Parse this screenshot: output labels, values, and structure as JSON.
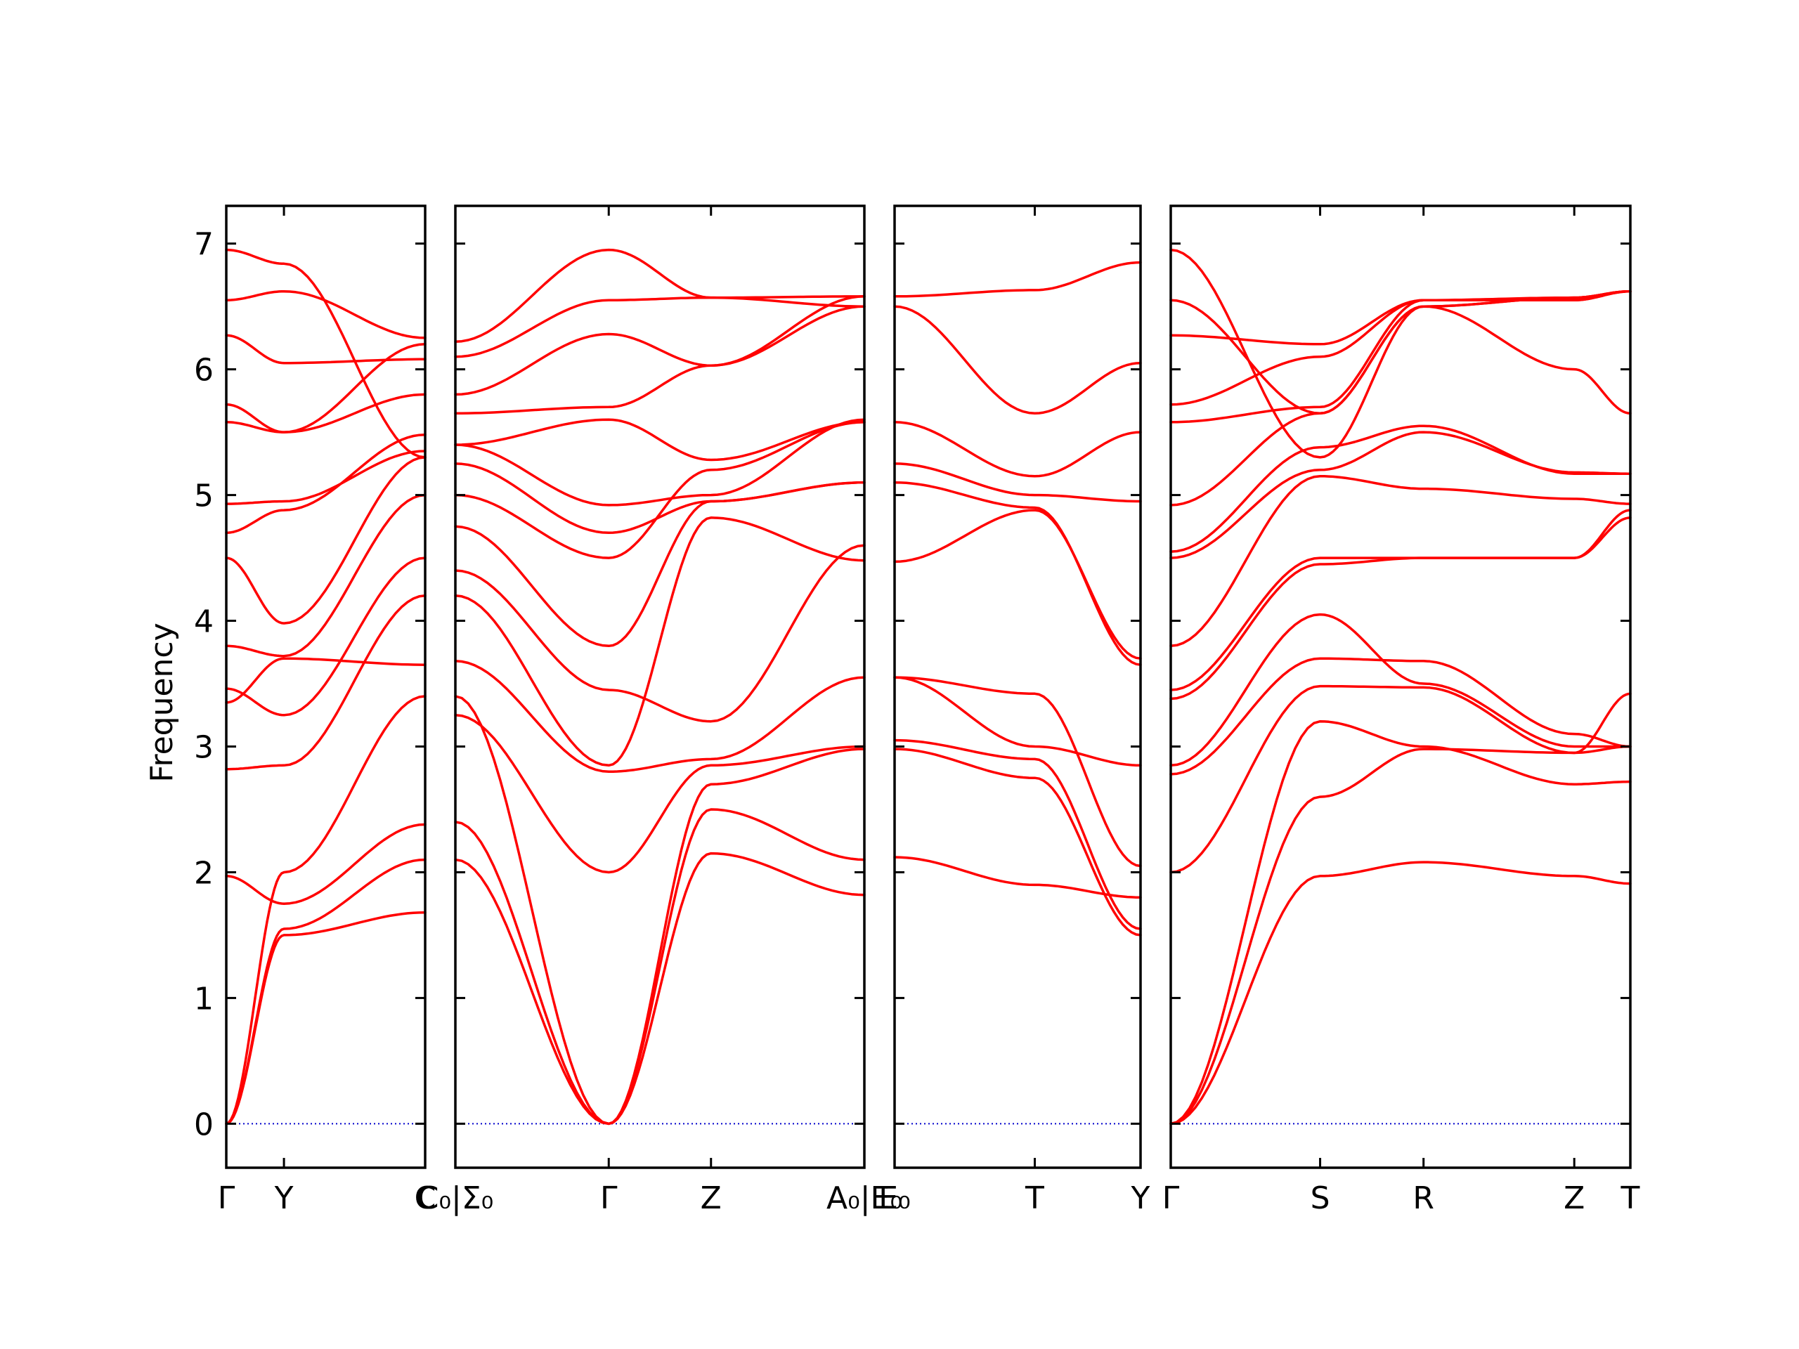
{
  "chart_data": {
    "type": "line",
    "ylabel": "Frequency",
    "ylim": [
      -0.35,
      7.3
    ],
    "yticks": [
      0,
      1,
      2,
      3,
      4,
      5,
      6,
      7
    ],
    "grid": false,
    "colors": {
      "bands": "#ff0000",
      "zero_line": "#0000cc",
      "frame": "#000000"
    },
    "panels": [
      {
        "id": "p1",
        "xlim": [
          0,
          1
        ],
        "xticks": [
          {
            "x": 0.0,
            "label": "Γ"
          },
          {
            "x": 0.29,
            "label": "Y"
          },
          {
            "x": 1.0,
            "label": "C"
          }
        ],
        "segments": [
          [
            0,
            0.29
          ],
          [
            0.29,
            1
          ]
        ],
        "bands": [
          [
            0,
            1.5,
            1.68
          ],
          [
            0,
            1.55,
            2.1
          ],
          [
            0,
            2.0,
            3.4
          ],
          [
            1.97,
            1.75,
            2.38
          ],
          [
            2.82,
            2.85,
            4.2
          ],
          [
            3.46,
            3.25,
            4.5
          ],
          [
            3.35,
            3.7,
            3.65
          ],
          [
            3.8,
            3.72,
            5.0
          ],
          [
            4.5,
            3.98,
            5.3
          ],
          [
            4.7,
            4.88,
            5.48
          ],
          [
            4.93,
            4.95,
            5.35
          ],
          [
            5.58,
            5.5,
            5.8
          ],
          [
            5.72,
            5.5,
            6.2
          ],
          [
            6.27,
            6.05,
            6.08
          ],
          [
            6.55,
            6.62,
            6.25
          ],
          [
            6.95,
            6.84,
            5.3
          ]
        ]
      },
      {
        "id": "p2",
        "xlim": [
          0,
          1
        ],
        "xticks": [
          {
            "x": 0.0,
            "label": "C₀|Σ₀"
          },
          {
            "x": 0.375,
            "label": "Γ"
          },
          {
            "x": 0.625,
            "label": "Z"
          },
          {
            "x": 1.0,
            "label": "A₀|E₀"
          }
        ],
        "segments": [
          [
            0,
            0.375
          ],
          [
            0.375,
            0.625
          ],
          [
            0.625,
            1
          ]
        ],
        "bands": [
          [
            2.1,
            0,
            2.5,
            2.1
          ],
          [
            2.4,
            0,
            2.15,
            1.82
          ],
          [
            3.4,
            0,
            2.7,
            2.98
          ],
          [
            3.25,
            2.0,
            2.85,
            3.0
          ],
          [
            3.68,
            2.8,
            2.9,
            3.55
          ],
          [
            4.2,
            2.85,
            4.82,
            4.48
          ],
          [
            4.4,
            3.45,
            3.2,
            4.6
          ],
          [
            4.75,
            3.8,
            4.95,
            5.1
          ],
          [
            5.0,
            4.5,
            5.2,
            5.58
          ],
          [
            5.25,
            4.7,
            4.95,
            5.1
          ],
          [
            5.4,
            4.92,
            5.0,
            5.6
          ],
          [
            5.4,
            5.6,
            5.28,
            5.58
          ],
          [
            5.65,
            5.7,
            6.03,
            6.58
          ],
          [
            5.8,
            6.28,
            6.03,
            6.5
          ],
          [
            6.1,
            6.55,
            6.57,
            6.5
          ],
          [
            6.22,
            6.95,
            6.57,
            6.58
          ]
        ]
      },
      {
        "id": "p3",
        "xlim": [
          0,
          1
        ],
        "xticks": [
          {
            "x": 0.0,
            "label": "E₀"
          },
          {
            "x": 0.57,
            "label": "T"
          },
          {
            "x": 1.0,
            "label": "Y"
          }
        ],
        "segments": [
          [
            0,
            0.57
          ],
          [
            0.57,
            1
          ]
        ],
        "bands": [
          [
            2.12,
            1.9,
            1.8
          ],
          [
            2.98,
            2.75,
            1.5
          ],
          [
            3.05,
            2.9,
            1.55
          ],
          [
            3.55,
            3.0,
            2.85
          ],
          [
            3.55,
            3.42,
            2.05
          ],
          [
            4.47,
            4.88,
            3.7
          ],
          [
            5.1,
            4.9,
            3.65
          ],
          [
            5.25,
            5.0,
            4.95
          ],
          [
            5.58,
            5.15,
            5.5
          ],
          [
            6.5,
            5.65,
            6.05
          ],
          [
            6.58,
            6.63,
            6.85
          ]
        ]
      },
      {
        "id": "p4",
        "xlim": [
          0,
          1
        ],
        "xticks": [
          {
            "x": 0.0,
            "label": "Γ"
          },
          {
            "x": 0.325,
            "label": "S"
          },
          {
            "x": 0.55,
            "label": "R"
          },
          {
            "x": 0.878,
            "label": "Z"
          },
          {
            "x": 1.0,
            "label": "T"
          }
        ],
        "segments": [
          [
            0,
            0.325
          ],
          [
            0.325,
            0.55
          ],
          [
            0.55,
            0.878
          ],
          [
            0.878,
            1
          ]
        ],
        "bands": [
          [
            0,
            1.97,
            2.08,
            1.97,
            1.91
          ],
          [
            0,
            2.6,
            2.98,
            2.95,
            3.0
          ],
          [
            0,
            3.2,
            3.0,
            2.7,
            2.72
          ],
          [
            2.0,
            3.48,
            3.47,
            2.95,
            3.42
          ],
          [
            2.78,
            3.7,
            3.68,
            3.1,
            3.0
          ],
          [
            2.85,
            4.05,
            3.5,
            3.0,
            3.0
          ],
          [
            3.38,
            4.45,
            4.5,
            4.5,
            4.82
          ],
          [
            3.45,
            4.5,
            4.5,
            4.5,
            4.88
          ],
          [
            3.8,
            5.15,
            5.05,
            4.97,
            4.93
          ],
          [
            4.5,
            5.2,
            5.5,
            5.18,
            5.17
          ],
          [
            4.55,
            5.38,
            5.55,
            5.17,
            5.17
          ],
          [
            4.92,
            5.65,
            6.5,
            6.0,
            5.65
          ],
          [
            5.58,
            5.7,
            6.55,
            6.55,
            6.62
          ],
          [
            5.72,
            6.1,
            6.55,
            6.55,
            6.62
          ],
          [
            6.27,
            6.2,
            6.55,
            6.57,
            6.62
          ],
          [
            6.55,
            5.65,
            6.5,
            6.57,
            6.62
          ],
          [
            6.95,
            5.3,
            6.5,
            6.57,
            6.62
          ]
        ]
      }
    ]
  }
}
